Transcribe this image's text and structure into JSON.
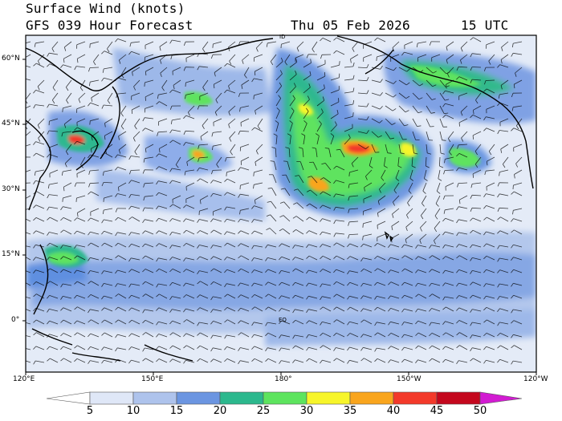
{
  "header": {
    "title": "Surface Wind (knots)",
    "subtitle": "GFS 039 Hour Forecast",
    "date": "Thu 05 Feb 2026",
    "time": "15 UTC"
  },
  "map": {
    "region": "North Pacific",
    "lat_labels": [
      "60°N",
      "45°N",
      "30°N",
      "15°N",
      "0°"
    ],
    "lon_labels": [
      "120°E",
      "150°E",
      "180°",
      "150°W",
      "120°W"
    ],
    "inline_labels": [
      "ID",
      "EQ"
    ]
  },
  "colorbar": {
    "ticks": [
      "5",
      "10",
      "15",
      "20",
      "25",
      "30",
      "35",
      "40",
      "45",
      "50"
    ],
    "colors": [
      "#ffffff",
      "#dfe7f7",
      "#aec3ec",
      "#6b95e1",
      "#2cb88d",
      "#5de45e",
      "#f7f52a",
      "#f9a51d",
      "#f3392a",
      "#c4071d",
      "#d21bd2"
    ],
    "units": "knots"
  }
}
